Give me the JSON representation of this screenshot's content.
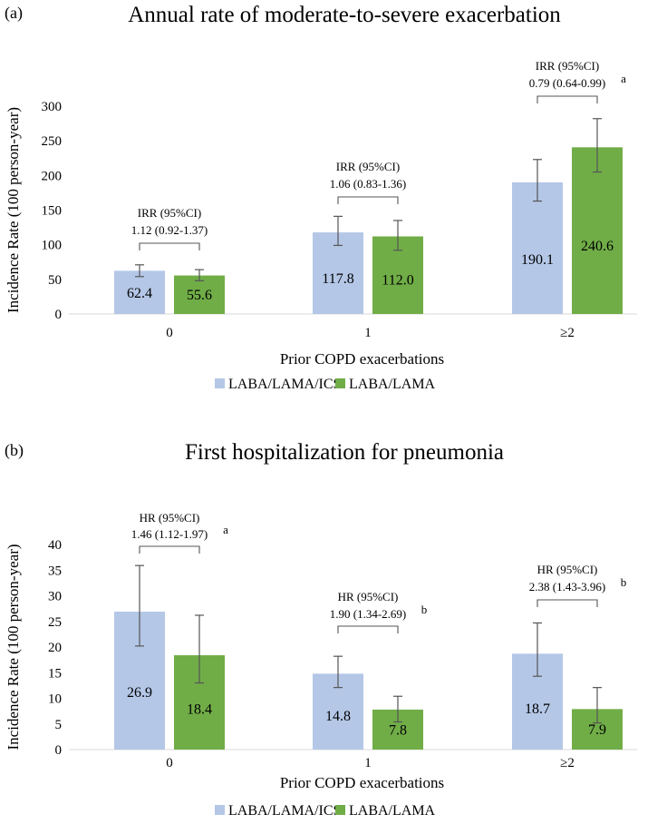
{
  "colors": {
    "series1": "#b4c7e7",
    "series2": "#70ad47",
    "axis": "#d9d9d9",
    "errbar": "#555555",
    "bracket": "#555555"
  },
  "chart_data": [
    {
      "type": "bar",
      "panel_label": "(a)",
      "title": "Annual rate of moderate-to-severe exacerbation",
      "xlabel": "Prior COPD exacerbations",
      "ylabel": "Incidence Rate (100 person-year)",
      "categories": [
        "0",
        "1",
        "≥2"
      ],
      "ylim": [
        0,
        300
      ],
      "yticks": [
        "0",
        "50",
        "100",
        "150",
        "200",
        "250",
        "300"
      ],
      "series": [
        {
          "name": "LABA/LAMA/ICS",
          "values": [
            62.4,
            117.8,
            190.1
          ],
          "labels": [
            "62.4",
            "117.8",
            "190.1"
          ],
          "err_low": [
            54,
            99,
            163
          ],
          "err_high": [
            71,
            141,
            223
          ]
        },
        {
          "name": "LABA/LAMA",
          "values": [
            55.6,
            112.0,
            240.6
          ],
          "labels": [
            "55.6",
            "112.0",
            "240.6"
          ],
          "err_low": [
            48,
            92,
            205
          ],
          "err_high": [
            64,
            135,
            282
          ]
        }
      ],
      "annotations": [
        {
          "line1": "IRR (95%CI)",
          "line2": "1.12 (0.92-1.37)",
          "sup": ""
        },
        {
          "line1": "IRR (95%CI)",
          "line2": "1.06 (0.83-1.36)",
          "sup": ""
        },
        {
          "line1": "IRR (95%CI)",
          "line2": "0.79 (0.64-0.99)",
          "sup": "a"
        }
      ]
    },
    {
      "type": "bar",
      "panel_label": "(b)",
      "title": "First hospitalization for pneumonia",
      "xlabel": "Prior COPD exacerbations",
      "ylabel": "Incidence Rate (100 person-year)",
      "categories": [
        "0",
        "1",
        "≥2"
      ],
      "ylim": [
        0,
        40
      ],
      "yticks": [
        "0",
        "5",
        "10",
        "15",
        "20",
        "25",
        "30",
        "35",
        "40"
      ],
      "series": [
        {
          "name": "LABA/LAMA/ICS",
          "values": [
            26.9,
            14.8,
            18.7
          ],
          "labels": [
            "26.9",
            "14.8",
            "18.7"
          ],
          "err_low": [
            20.2,
            12.1,
            14.3
          ],
          "err_high": [
            35.9,
            18.2,
            24.7
          ]
        },
        {
          "name": "LABA/LAMA",
          "values": [
            18.4,
            7.8,
            7.9
          ],
          "labels": [
            "18.4",
            "7.8",
            "7.9"
          ],
          "err_low": [
            13.0,
            5.4,
            5.2
          ],
          "err_high": [
            26.2,
            10.4,
            12.1
          ]
        }
      ],
      "annotations": [
        {
          "line1": "HR (95%CI)",
          "line2": "1.46 (1.12-1.97)",
          "sup": "a"
        },
        {
          "line1": "HR (95%CI)",
          "line2": "1.90 (1.34-2.69)",
          "sup": "b"
        },
        {
          "line1": "HR (95%CI)",
          "line2": "2.38 (1.43-3.96)",
          "sup": "b"
        }
      ]
    }
  ]
}
